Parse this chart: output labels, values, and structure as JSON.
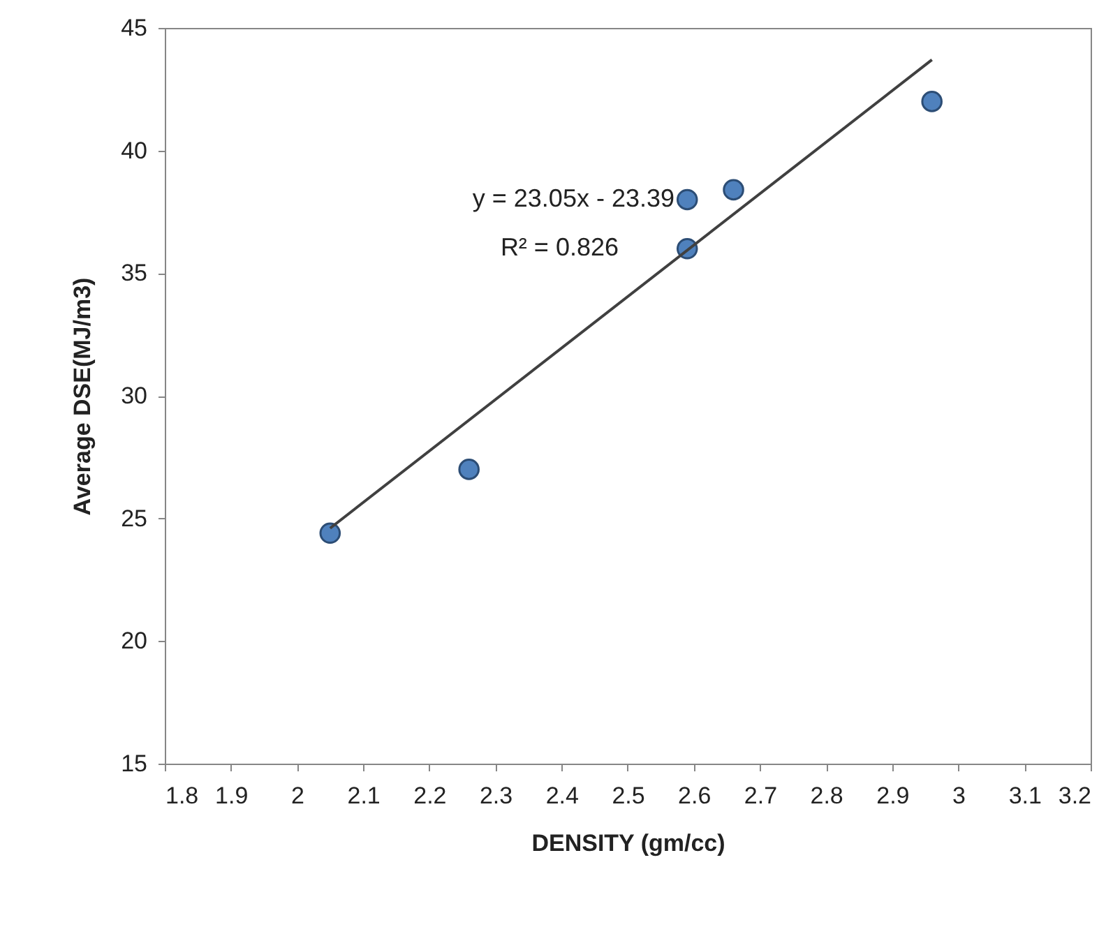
{
  "chart_data": {
    "type": "scatter",
    "xlabel": "DENSITY (gm/cc)",
    "ylabel": "Average DSE(MJ/m3)",
    "xlim": [
      1.8,
      3.2
    ],
    "xticks": [
      1.8,
      1.9,
      2,
      2.1,
      2.2,
      2.3,
      2.4,
      2.5,
      2.6,
      2.7,
      2.8,
      2.9,
      3,
      3.1,
      3.2
    ],
    "ylim": [
      15,
      45
    ],
    "yticks": [
      15,
      20,
      25,
      30,
      35,
      40,
      45
    ],
    "grid": false,
    "annotations": [
      "y = 23.05x - 23.39",
      "R² = 0.826"
    ],
    "series": [
      {
        "marker": "circle",
        "color": "#4f81bd",
        "x": [
          2.05,
          2.26,
          2.59,
          2.59,
          2.66,
          2.96
        ],
        "values": [
          24.4,
          27.0,
          38.0,
          36.0,
          38.4,
          42.0
        ]
      },
      {
        "type": "line",
        "color": "#404040",
        "x": [
          2.05,
          2.96
        ],
        "values": [
          24.6,
          43.7
        ]
      }
    ]
  }
}
